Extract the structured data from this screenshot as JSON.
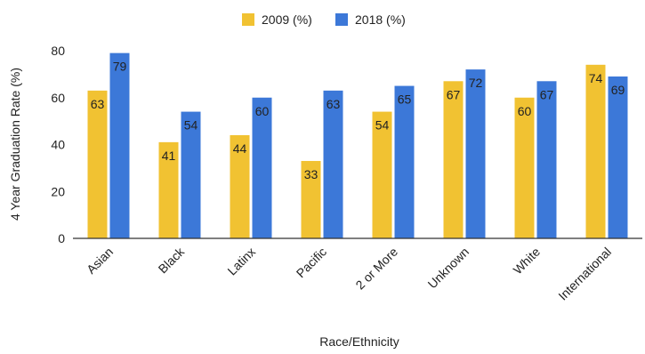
{
  "chart_data": {
    "type": "bar",
    "title": "",
    "xlabel": "Race/Ethnicity",
    "ylabel": "4 Year Graduation Rate (%)",
    "ylim": [
      0,
      80
    ],
    "yticks": [
      0,
      20,
      40,
      60,
      80
    ],
    "grid": false,
    "legend_position": "top",
    "categories": [
      "Asian",
      "Black",
      "Latinx",
      "Pacific",
      "2 or More",
      "Unknown",
      "White",
      "International"
    ],
    "series": [
      {
        "name": "2009 (%)",
        "color": "#f1c232",
        "values": [
          63,
          41,
          44,
          33,
          54,
          67,
          60,
          74
        ]
      },
      {
        "name": "2018 (%)",
        "color": "#3c78d8",
        "values": [
          79,
          54,
          60,
          63,
          65,
          72,
          67,
          69
        ]
      }
    ]
  }
}
